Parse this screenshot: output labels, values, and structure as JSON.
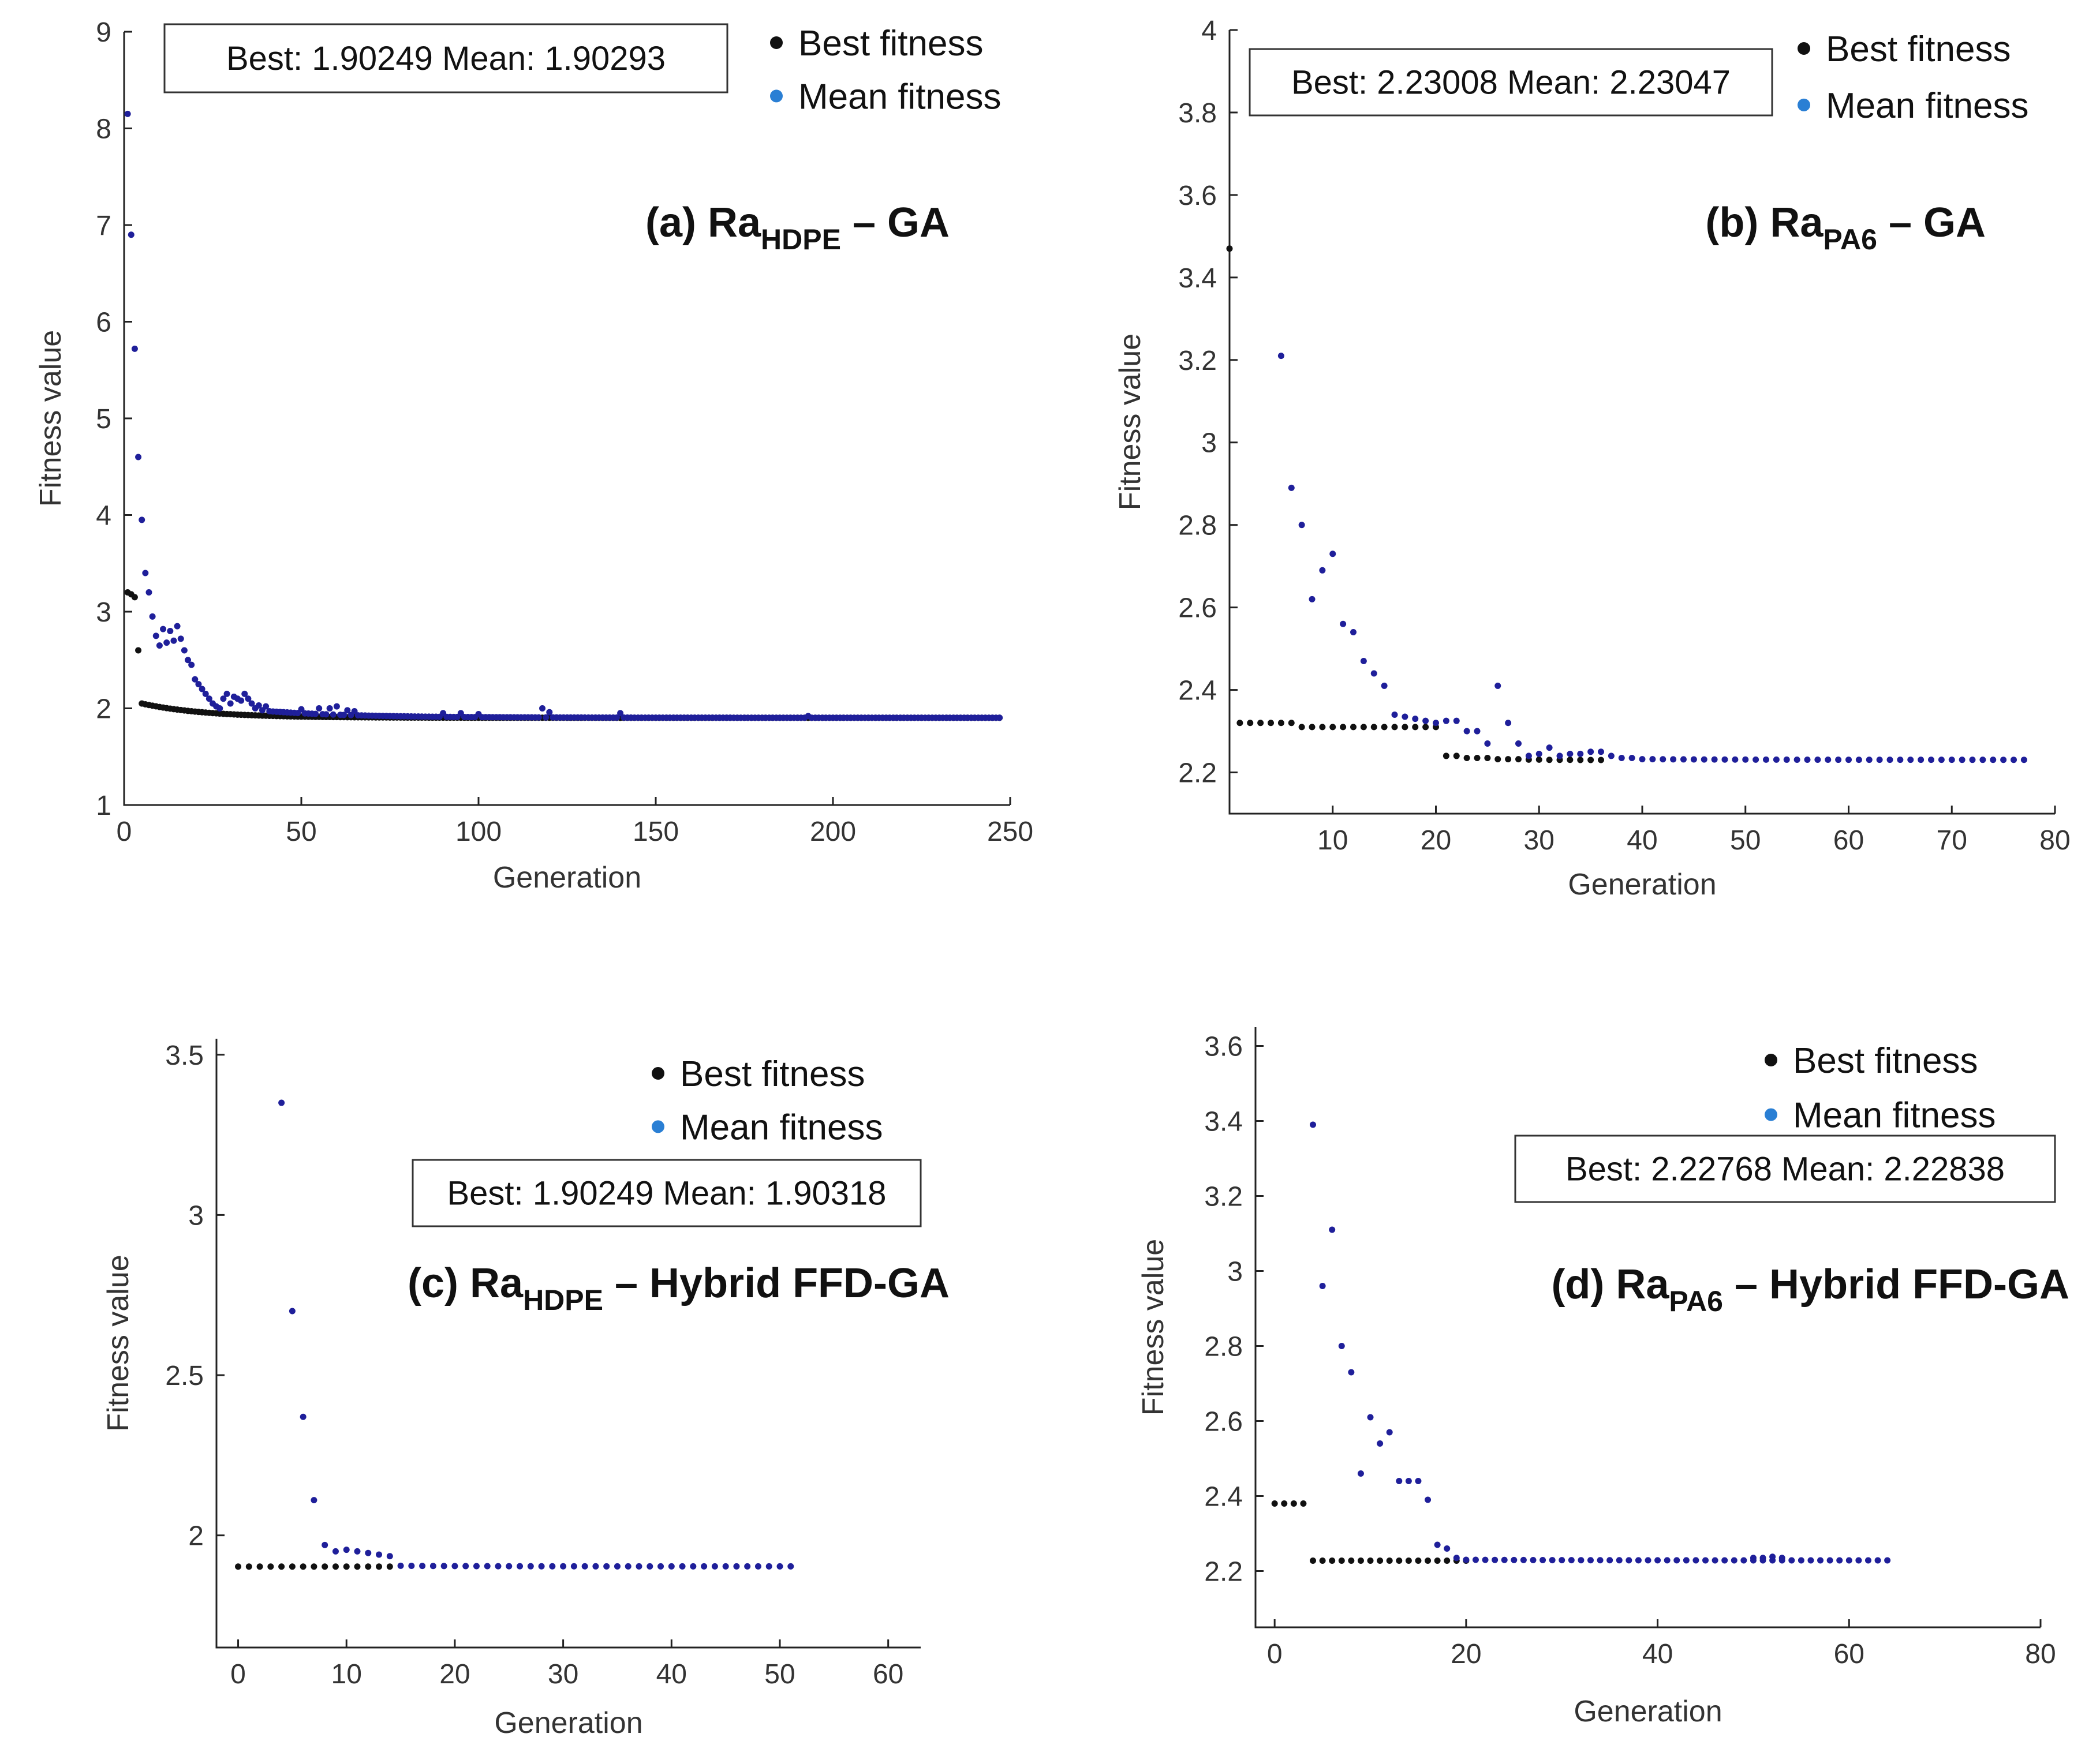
{
  "colors": {
    "best": "#111111",
    "mean": "#1f1f9a",
    "legend_mean": "#2a7fd4",
    "axis": "#222222"
  },
  "chart_data": [
    {
      "type": "scatter",
      "id": "a",
      "title": {
        "prefix": "(a) Ra",
        "sub": "HDPE",
        "suffix": " – GA"
      },
      "stats": "Best: 1.90249 Mean: 1.90293",
      "xlabel": "Generation",
      "ylabel": "Fitness value",
      "xlim": [
        0,
        250
      ],
      "ylim": [
        1,
        9
      ],
      "xticks": [
        0,
        50,
        100,
        150,
        200,
        250
      ],
      "yticks": [
        1,
        2,
        3,
        4,
        5,
        6,
        7,
        8,
        9
      ],
      "legend": [
        "Best fitness",
        "Mean fitness"
      ],
      "best_early": [
        [
          1,
          3.2
        ],
        [
          2,
          3.18
        ],
        [
          3,
          3.15
        ],
        [
          4,
          2.6
        ]
      ],
      "best_rest": {
        "x0": 5,
        "x1": 247,
        "step": 1,
        "y_start": 2.05,
        "y_end": 1.9025,
        "tau": 18
      },
      "mean_early": [
        [
          1,
          8.15
        ],
        [
          2,
          6.9
        ],
        [
          3,
          5.72
        ],
        [
          4,
          4.6
        ],
        [
          5,
          3.95
        ],
        [
          6,
          3.4
        ],
        [
          7,
          3.2
        ],
        [
          8,
          2.95
        ],
        [
          9,
          2.75
        ],
        [
          10,
          2.65
        ],
        [
          11,
          2.82
        ],
        [
          12,
          2.68
        ],
        [
          13,
          2.8
        ],
        [
          14,
          2.7
        ],
        [
          15,
          2.85
        ],
        [
          16,
          2.72
        ],
        [
          17,
          2.6
        ],
        [
          18,
          2.5
        ],
        [
          19,
          2.45
        ],
        [
          20,
          2.3
        ],
        [
          21,
          2.25
        ],
        [
          22,
          2.2
        ],
        [
          23,
          2.15
        ],
        [
          24,
          2.1
        ],
        [
          25,
          2.05
        ],
        [
          26,
          2.02
        ],
        [
          27,
          2.0
        ],
        [
          28,
          2.1
        ],
        [
          29,
          2.15
        ],
        [
          30,
          2.05
        ],
        [
          31,
          2.12
        ],
        [
          32,
          2.1
        ],
        [
          33,
          2.08
        ],
        [
          34,
          2.15
        ],
        [
          35,
          2.1
        ],
        [
          36,
          2.05
        ],
        [
          37,
          2.0
        ],
        [
          38,
          2.03
        ],
        [
          39,
          1.98
        ],
        [
          40,
          2.02
        ]
      ],
      "mean_rest": {
        "x0": 41,
        "x1": 247,
        "step": 1,
        "y_start": 1.97,
        "y_end": 1.903,
        "tau": 25,
        "bumps": [
          [
            50,
            1.99
          ],
          [
            55,
            2.0
          ],
          [
            58,
            2.0
          ],
          [
            60,
            2.02
          ],
          [
            63,
            1.98
          ],
          [
            65,
            1.97
          ],
          [
            90,
            1.95
          ],
          [
            95,
            1.95
          ],
          [
            100,
            1.94
          ],
          [
            118,
            2.0
          ],
          [
            120,
            1.96
          ],
          [
            140,
            1.95
          ],
          [
            193,
            1.92
          ]
        ]
      }
    },
    {
      "type": "scatter",
      "id": "b",
      "title": {
        "prefix": "(b) Ra",
        "sub": "PA6",
        "suffix": " – GA"
      },
      "stats": "Best: 2.23008 Mean: 2.23047",
      "xlabel": "Generation",
      "ylabel": "Fitness value",
      "xlim": [
        0,
        80
      ],
      "ylim": [
        2.1,
        4.0
      ],
      "xticks": [
        10,
        20,
        30,
        40,
        50,
        60,
        70,
        80
      ],
      "yticks": [
        2.2,
        2.4,
        2.6,
        2.8,
        3,
        3.2,
        3.4,
        3.6,
        3.8,
        4
      ],
      "legend": [
        "Best fitness",
        "Mean fitness"
      ],
      "best_points": [
        [
          0,
          3.47
        ],
        [
          1,
          2.32
        ],
        [
          2,
          2.32
        ],
        [
          3,
          2.32
        ],
        [
          4,
          2.32
        ],
        [
          5,
          2.32
        ],
        [
          6,
          2.32
        ],
        [
          7,
          2.31
        ],
        [
          8,
          2.31
        ],
        [
          9,
          2.31
        ],
        [
          10,
          2.31
        ],
        [
          11,
          2.31
        ],
        [
          12,
          2.31
        ],
        [
          13,
          2.31
        ],
        [
          14,
          2.31
        ],
        [
          15,
          2.31
        ],
        [
          16,
          2.31
        ],
        [
          17,
          2.31
        ],
        [
          18,
          2.31
        ],
        [
          19,
          2.31
        ],
        [
          20,
          2.31
        ],
        [
          21,
          2.24
        ],
        [
          22,
          2.24
        ],
        [
          23,
          2.235
        ],
        [
          24,
          2.235
        ],
        [
          25,
          2.235
        ],
        [
          26,
          2.232
        ],
        [
          27,
          2.232
        ],
        [
          28,
          2.232
        ],
        [
          29,
          2.231
        ],
        [
          30,
          2.231
        ],
        [
          31,
          2.2305
        ],
        [
          32,
          2.2305
        ],
        [
          33,
          2.2305
        ],
        [
          34,
          2.2302
        ],
        [
          35,
          2.2302
        ],
        [
          36,
          2.2301
        ]
      ],
      "mean_points": [
        [
          5,
          3.21
        ],
        [
          6,
          2.89
        ],
        [
          7,
          2.8
        ],
        [
          8,
          2.62
        ],
        [
          9,
          2.69
        ],
        [
          10,
          2.73
        ],
        [
          11,
          2.56
        ],
        [
          12,
          2.54
        ],
        [
          13,
          2.47
        ],
        [
          14,
          2.44
        ],
        [
          15,
          2.41
        ],
        [
          16,
          2.34
        ],
        [
          17,
          2.335
        ],
        [
          18,
          2.33
        ],
        [
          19,
          2.325
        ],
        [
          20,
          2.32
        ],
        [
          21,
          2.325
        ],
        [
          22,
          2.325
        ],
        [
          23,
          2.3
        ],
        [
          24,
          2.3
        ],
        [
          25,
          2.27
        ],
        [
          26,
          2.41
        ],
        [
          27,
          2.32
        ],
        [
          28,
          2.27
        ],
        [
          29,
          2.24
        ],
        [
          30,
          2.245
        ],
        [
          31,
          2.26
        ],
        [
          32,
          2.24
        ],
        [
          33,
          2.245
        ],
        [
          34,
          2.245
        ],
        [
          35,
          2.25
        ],
        [
          36,
          2.25
        ],
        [
          37,
          2.24
        ],
        [
          38,
          2.235
        ],
        [
          39,
          2.235
        ],
        [
          40,
          2.232
        ]
      ],
      "mean_rest": {
        "x0": 41,
        "x1": 77,
        "step": 1,
        "y_start": 2.232,
        "y_end": 2.2305,
        "tau": 10
      }
    },
    {
      "type": "scatter",
      "id": "c",
      "title": {
        "prefix": "(c) Ra",
        "sub": "HDPE",
        "suffix": " – Hybrid FFD-GA"
      },
      "stats": "Best: 1.90249 Mean: 1.90318",
      "xlabel": "Generation",
      "ylabel": "Fitness value",
      "xlim": [
        -2,
        63
      ],
      "ylim": [
        1.65,
        3.55
      ],
      "xticks": [
        0,
        10,
        20,
        30,
        40,
        50,
        60
      ],
      "yticks": [
        2,
        2.5,
        3,
        3.5
      ],
      "legend": [
        "Best fitness",
        "Mean fitness"
      ],
      "best_flat": {
        "x0": 0,
        "x1": 14,
        "step": 1,
        "y": 1.9025
      },
      "mean_points": [
        [
          4,
          3.35
        ],
        [
          5,
          2.7
        ],
        [
          6,
          2.37
        ],
        [
          7,
          2.11
        ],
        [
          8,
          1.97
        ],
        [
          9,
          1.95
        ],
        [
          10,
          1.955
        ],
        [
          11,
          1.95
        ],
        [
          12,
          1.945
        ],
        [
          13,
          1.94
        ],
        [
          14,
          1.935
        ]
      ],
      "mean_rest": {
        "x0": 15,
        "x1": 51,
        "step": 1,
        "y_start": 1.905,
        "y_end": 1.9032,
        "tau": 8
      }
    },
    {
      "type": "scatter",
      "id": "d",
      "title": {
        "prefix": "(d) Ra",
        "sub": "PA6",
        "suffix": " – Hybrid FFD-GA"
      },
      "stats": "Best: 2.22768 Mean: 2.22838",
      "xlabel": "Generation",
      "ylabel": "Fitness value",
      "xlim": [
        -2,
        80
      ],
      "ylim": [
        2.05,
        3.65
      ],
      "xticks": [
        0,
        20,
        40,
        60,
        80
      ],
      "yticks": [
        2.2,
        2.4,
        2.6,
        2.8,
        3,
        3.2,
        3.4,
        3.6
      ],
      "legend": [
        "Best fitness",
        "Mean fitness"
      ],
      "best_points": [
        [
          0,
          2.38
        ],
        [
          1,
          2.38
        ],
        [
          2,
          2.38
        ],
        [
          3,
          2.38
        ]
      ],
      "best_flat": {
        "x0": 4,
        "x1": 20,
        "step": 1,
        "y": 2.2277
      },
      "mean_points": [
        [
          4,
          3.39
        ],
        [
          5,
          2.96
        ],
        [
          6,
          3.11
        ],
        [
          7,
          2.8
        ],
        [
          8,
          2.73
        ],
        [
          9,
          2.46
        ],
        [
          10,
          2.61
        ],
        [
          11,
          2.54
        ],
        [
          12,
          2.57
        ],
        [
          13,
          2.44
        ],
        [
          14,
          2.44
        ],
        [
          15,
          2.44
        ],
        [
          16,
          2.39
        ],
        [
          17,
          2.27
        ],
        [
          18,
          2.26
        ],
        [
          19,
          2.235
        ],
        [
          20,
          2.23
        ],
        [
          50,
          2.235
        ],
        [
          51,
          2.235
        ],
        [
          52,
          2.238
        ],
        [
          53,
          2.235
        ]
      ],
      "mean_rest": {
        "x0": 21,
        "x1": 64,
        "step": 1,
        "y_start": 2.23,
        "y_end": 2.2284,
        "tau": 10
      }
    }
  ]
}
